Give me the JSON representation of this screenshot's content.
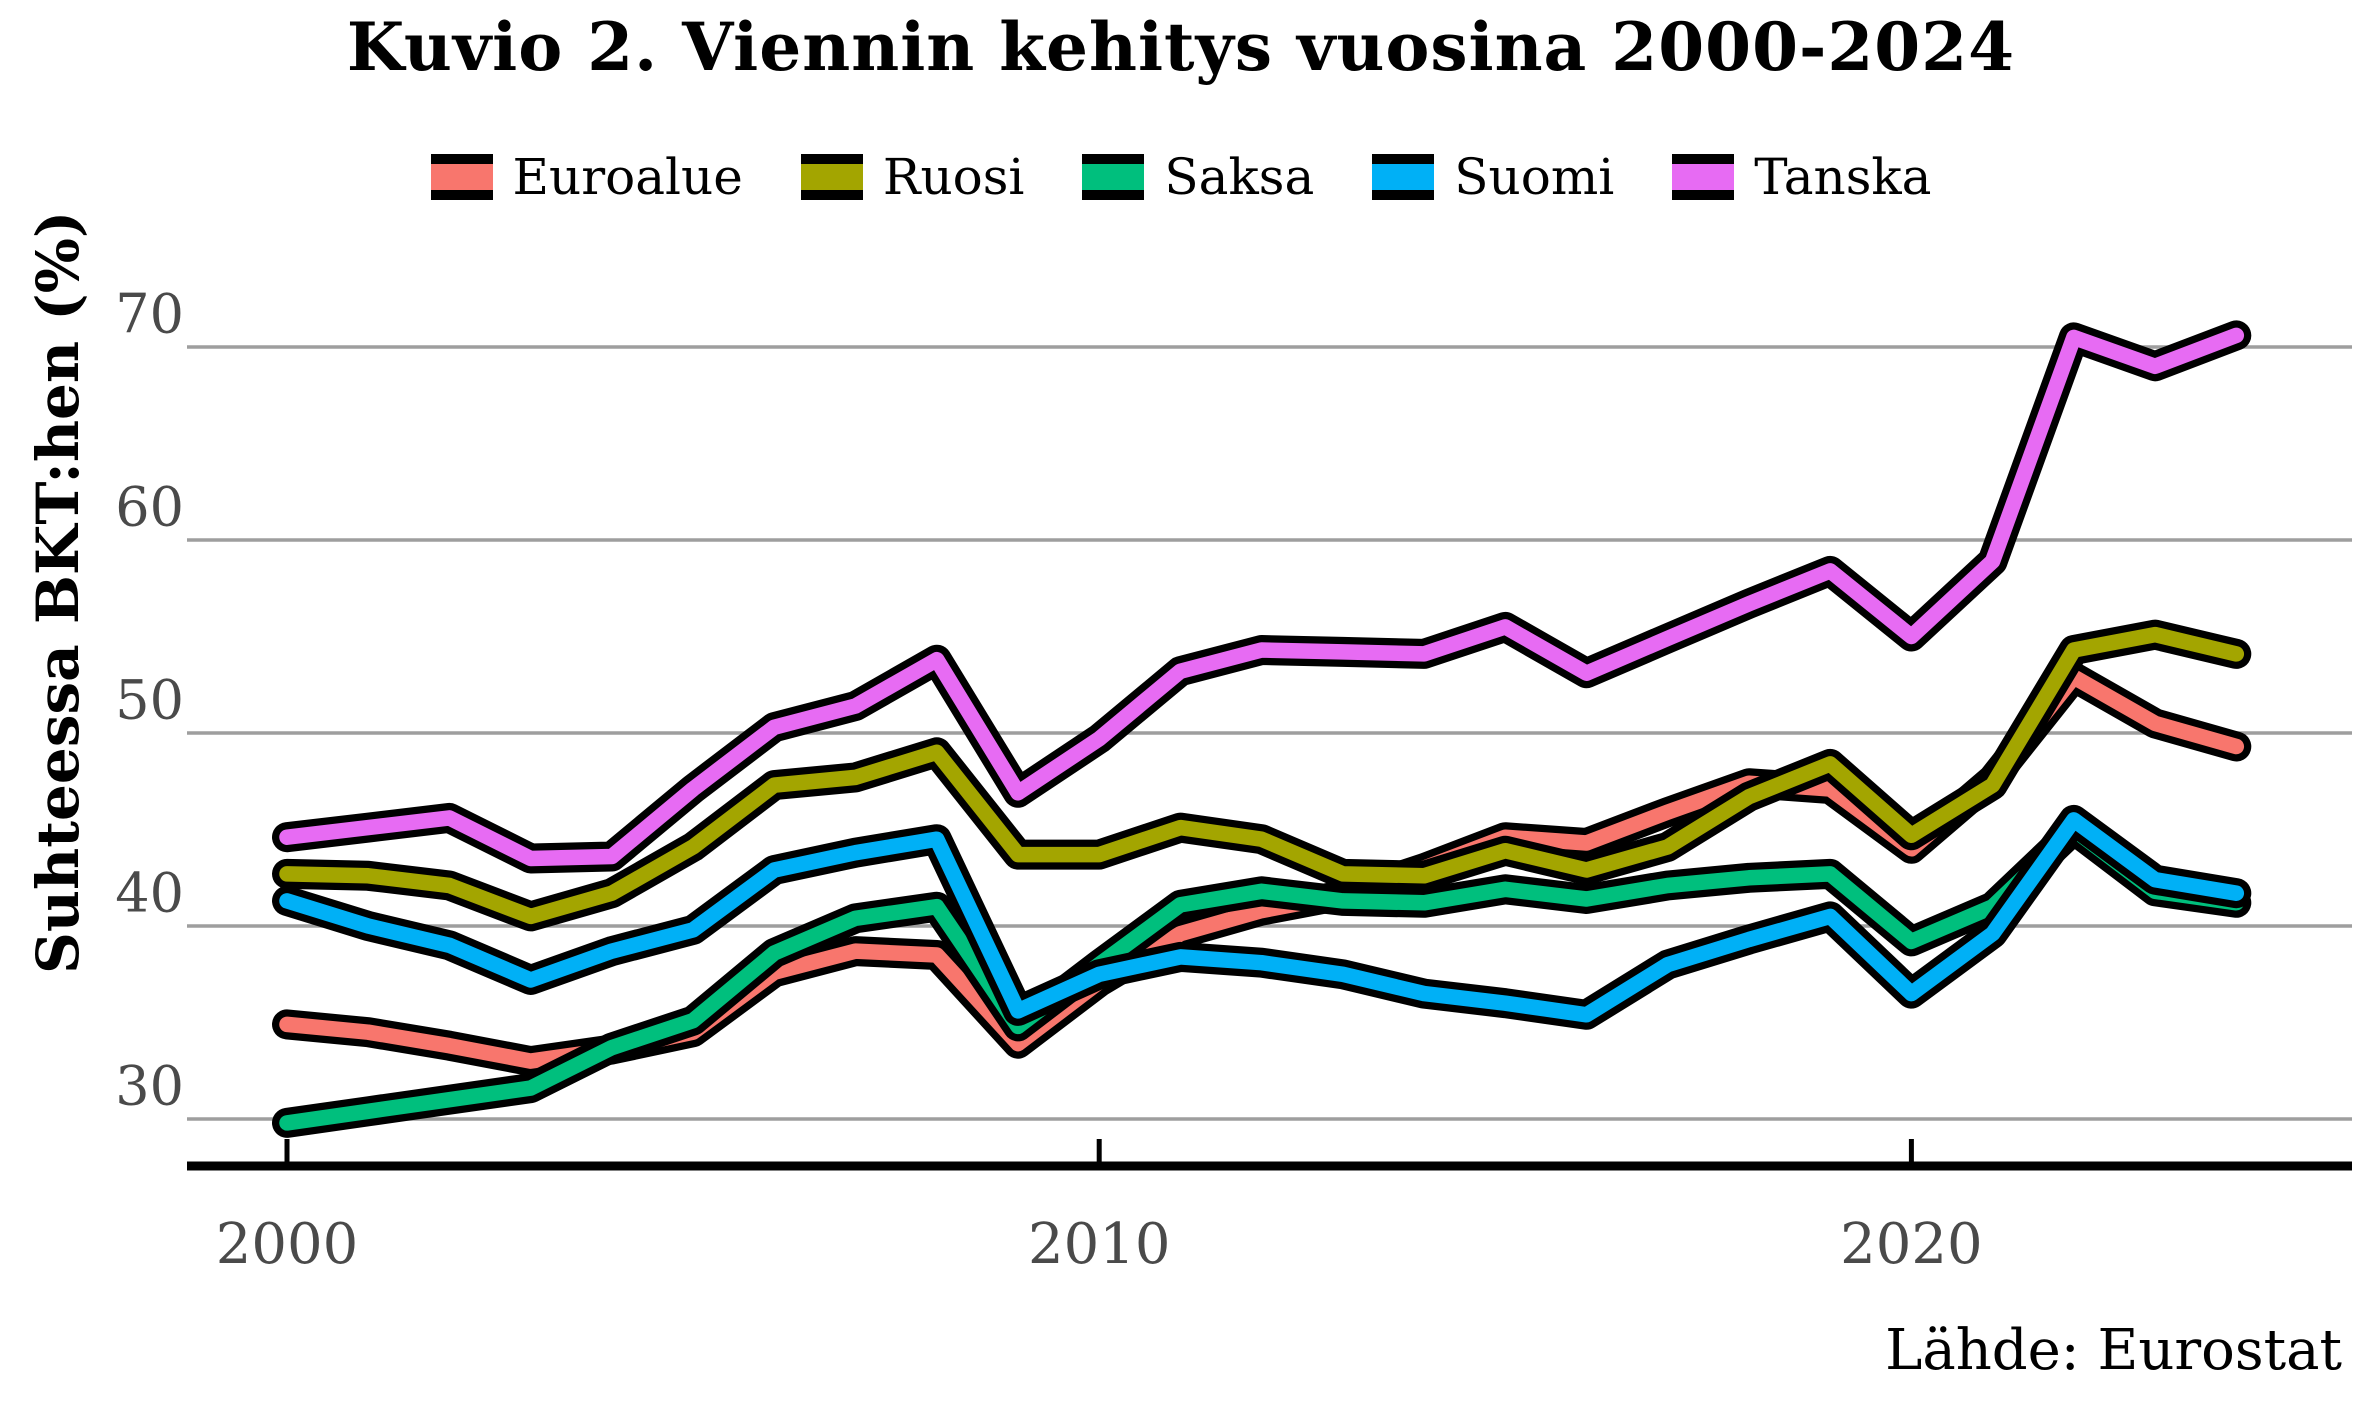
{
  "chart_data": {
    "type": "line",
    "title": "Kuvio 2. Viennin kehitys vuosina 2000-2024",
    "ylabel": "Suhteessa BKT:hen (%)",
    "caption": "Lähde: Eurostat",
    "x_label_none": "",
    "x": [
      2000,
      2001,
      2002,
      2003,
      2004,
      2005,
      2006,
      2007,
      2008,
      2009,
      2010,
      2011,
      2012,
      2013,
      2014,
      2015,
      2016,
      2017,
      2018,
      2019,
      2020,
      2021,
      2022,
      2023,
      2024
    ],
    "series": [
      {
        "name": "Euroalue",
        "color": "#F8766D",
        "values": [
          34.9,
          34.5,
          33.8,
          33.0,
          33.6,
          34.5,
          37.6,
          38.7,
          38.5,
          33.9,
          37.1,
          39.6,
          40.8,
          41.6,
          43.0,
          44.6,
          44.3,
          45.9,
          47.4,
          47.1,
          44.0,
          47.6,
          52.9,
          50.5,
          49.3
        ]
      },
      {
        "name": "Ruosi",
        "color": "#A3A500",
        "values": [
          42.7,
          42.6,
          42.1,
          40.5,
          41.7,
          44.1,
          47.3,
          47.7,
          49.0,
          43.7,
          43.7,
          45.1,
          44.5,
          42.7,
          42.6,
          43.9,
          42.9,
          44.1,
          46.7,
          48.4,
          44.7,
          47.3,
          54.3,
          55.1,
          54.1
        ]
      },
      {
        "name": "Saksa",
        "color": "#00BF7D",
        "values": [
          29.8,
          30.4,
          31.0,
          31.6,
          33.7,
          35.1,
          38.6,
          40.4,
          41.0,
          34.8,
          38.0,
          41.1,
          41.8,
          41.3,
          41.2,
          41.9,
          41.4,
          42.1,
          42.5,
          42.7,
          39.2,
          41.0,
          45.0,
          41.8,
          41.2
        ]
      },
      {
        "name": "Suomi",
        "color": "#00B0F6",
        "values": [
          41.3,
          40.0,
          39.0,
          37.2,
          38.7,
          39.8,
          42.9,
          43.8,
          44.5,
          35.6,
          37.5,
          38.4,
          38.1,
          37.5,
          36.5,
          36.0,
          35.4,
          38.0,
          39.3,
          40.5,
          36.5,
          39.6,
          45.5,
          42.4,
          41.7
        ]
      },
      {
        "name": "Tanska",
        "color": "#E76BF3",
        "values": [
          44.6,
          45.1,
          45.6,
          43.5,
          43.6,
          47.1,
          50.3,
          51.4,
          53.8,
          46.9,
          49.7,
          53.2,
          54.3,
          54.2,
          54.1,
          55.5,
          53.1,
          54.9,
          56.7,
          58.4,
          55.0,
          58.9,
          70.5,
          69.0,
          70.6
        ]
      }
    ],
    "y_ticks": [
      70,
      60,
      50,
      40,
      30
    ],
    "x_ticks": [
      2000,
      2010,
      2020
    ],
    "ylim": [
      27.5,
      72.5
    ],
    "grid": "horizontal-major-only",
    "legend_position": "top",
    "line_outline_color": "#000000",
    "gridline_color": "#9e9e9e",
    "axis_line_color": "#000000",
    "tick_label_color": "#4a4a4a",
    "background_color": "#ffffff"
  }
}
